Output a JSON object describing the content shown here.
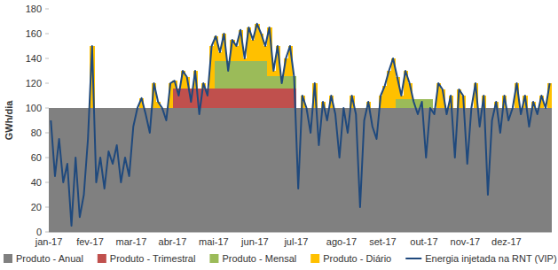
{
  "chart_data": {
    "type": "area",
    "ylabel": "GWh/dia",
    "categories": [
      "jan-17",
      null,
      null,
      null,
      null,
      null,
      null,
      null,
      null,
      null,
      "fev-17",
      null,
      null,
      null,
      null,
      null,
      null,
      null,
      null,
      null,
      "mar-17",
      null,
      null,
      null,
      null,
      null,
      null,
      null,
      null,
      null,
      "abr-17",
      null,
      null,
      null,
      null,
      null,
      null,
      null,
      null,
      null,
      "mai-17",
      null,
      null,
      null,
      null,
      null,
      null,
      null,
      null,
      null,
      "jun-17",
      null,
      null,
      null,
      null,
      null,
      null,
      null,
      null,
      null,
      "jul-17",
      null,
      null,
      null,
      null,
      null,
      null,
      null,
      null,
      null,
      null,
      "ago-17",
      null,
      null,
      null,
      null,
      null,
      null,
      null,
      null,
      null,
      "set-17",
      null,
      null,
      null,
      null,
      null,
      null,
      null,
      null,
      null,
      "out-17",
      null,
      null,
      null,
      null,
      null,
      null,
      null,
      null,
      null,
      "nov-17",
      null,
      null,
      null,
      null,
      null,
      null,
      null,
      null,
      null,
      "dez-17",
      null,
      null,
      null,
      null,
      null,
      null,
      null,
      null,
      null,
      null
    ],
    "series": [
      {
        "name": "Produto - Anual",
        "color": "#808080",
        "type": "area",
        "values": [
          100,
          100,
          100,
          100,
          100,
          100,
          100,
          100,
          100,
          100,
          100,
          100,
          100,
          100,
          100,
          100,
          100,
          100,
          100,
          100,
          100,
          100,
          100,
          100,
          100,
          100,
          100,
          100,
          100,
          100,
          100,
          100,
          100,
          100,
          100,
          100,
          100,
          100,
          100,
          100,
          100,
          100,
          100,
          100,
          100,
          100,
          100,
          100,
          100,
          100,
          100,
          100,
          100,
          100,
          100,
          100,
          100,
          100,
          100,
          100,
          100,
          100,
          100,
          100,
          100,
          100,
          100,
          100,
          100,
          100,
          100,
          100,
          100,
          100,
          100,
          100,
          100,
          100,
          100,
          100,
          100,
          100,
          100,
          100,
          100,
          100,
          100,
          100,
          100,
          100,
          100,
          100,
          100,
          100,
          100,
          100,
          100,
          100,
          100,
          100,
          100,
          100,
          100,
          100,
          100,
          100,
          100,
          100,
          100,
          100,
          100,
          100,
          100,
          100,
          100,
          100,
          100,
          100,
          100,
          100,
          100,
          100
        ]
      },
      {
        "name": "Produto - Trimestral",
        "color": "#c0504d",
        "type": "area",
        "values": [
          0,
          0,
          0,
          0,
          0,
          0,
          0,
          0,
          0,
          0,
          0,
          0,
          0,
          0,
          0,
          0,
          0,
          0,
          0,
          0,
          0,
          0,
          0,
          0,
          0,
          0,
          0,
          0,
          0,
          0,
          16,
          16,
          16,
          16,
          16,
          16,
          16,
          16,
          16,
          16,
          16,
          16,
          16,
          16,
          16,
          16,
          16,
          16,
          16,
          16,
          16,
          16,
          16,
          16,
          16,
          16,
          16,
          16,
          16,
          16,
          0,
          0,
          0,
          0,
          0,
          0,
          0,
          0,
          0,
          0,
          0,
          0,
          0,
          0,
          0,
          0,
          0,
          0,
          0,
          0,
          0,
          0,
          0,
          0,
          0,
          0,
          0,
          0,
          0,
          0,
          0,
          0,
          0,
          0,
          0,
          0,
          0,
          0,
          0,
          0,
          0,
          0,
          0,
          0,
          0,
          0,
          0,
          0,
          0,
          0,
          0,
          0,
          0,
          0,
          0,
          0,
          0,
          0,
          0,
          0,
          0,
          0
        ]
      },
      {
        "name": "Produto - Mensal",
        "color": "#9bbb59",
        "type": "area",
        "values": [
          0,
          0,
          0,
          0,
          0,
          0,
          0,
          0,
          0,
          0,
          0,
          0,
          0,
          0,
          0,
          0,
          0,
          0,
          0,
          0,
          0,
          0,
          0,
          0,
          0,
          0,
          0,
          0,
          0,
          0,
          0,
          0,
          0,
          0,
          0,
          0,
          0,
          0,
          0,
          0,
          22,
          22,
          22,
          22,
          22,
          22,
          22,
          22,
          22,
          22,
          22,
          22,
          22,
          10,
          10,
          10,
          10,
          10,
          10,
          10,
          0,
          0,
          0,
          0,
          0,
          0,
          0,
          0,
          0,
          0,
          0,
          0,
          0,
          0,
          0,
          0,
          0,
          0,
          0,
          0,
          0,
          0,
          0,
          0,
          7,
          7,
          7,
          7,
          7,
          7,
          7,
          7,
          7,
          0,
          0,
          0,
          0,
          0,
          0,
          0,
          0,
          0,
          0,
          0,
          0,
          0,
          0,
          0,
          0,
          0,
          0,
          0,
          0,
          0,
          0,
          0,
          0,
          0,
          0,
          0,
          0,
          0
        ]
      },
      {
        "name": "Produto - Diário",
        "color": "#ffc000",
        "type": "area",
        "values": [
          0,
          0,
          0,
          0,
          0,
          0,
          0,
          0,
          0,
          0,
          50,
          0,
          0,
          0,
          0,
          0,
          0,
          0,
          0,
          0,
          0,
          0,
          8,
          0,
          0,
          20,
          5,
          0,
          0,
          20,
          6,
          0,
          14,
          9,
          0,
          14,
          0,
          4,
          0,
          34,
          20,
          7,
          22,
          0,
          17,
          12,
          25,
          2,
          27,
          17,
          30,
          22,
          12,
          39,
          4,
          24,
          0,
          14,
          24,
          0,
          0,
          10,
          0,
          0,
          20,
          0,
          5,
          0,
          10,
          0,
          0,
          0,
          0,
          10,
          0,
          0,
          0,
          5,
          0,
          0,
          10,
          18,
          30,
          40,
          18,
          3,
          23,
          13,
          0,
          0,
          0,
          0,
          0,
          0,
          20,
          15,
          0,
          10,
          0,
          15,
          10,
          0,
          0,
          20,
          0,
          10,
          0,
          0,
          5,
          0,
          10,
          0,
          0,
          20,
          0,
          10,
          0,
          5,
          0,
          10,
          0,
          20
        ]
      },
      {
        "name": "Energia injetada na RNT (VIP)",
        "color": "#1f497d",
        "type": "line",
        "values": [
          90,
          45,
          75,
          40,
          55,
          5,
          60,
          12,
          30,
          75,
          150,
          40,
          60,
          35,
          65,
          55,
          70,
          40,
          60,
          45,
          85,
          100,
          108,
          95,
          80,
          120,
          105,
          100,
          90,
          120,
          122,
          110,
          130,
          125,
          105,
          130,
          95,
          120,
          110,
          150,
          158,
          145,
          160,
          130,
          155,
          150,
          163,
          140,
          165,
          155,
          168,
          160,
          150,
          165,
          130,
          150,
          120,
          140,
          150,
          125,
          35,
          110,
          100,
          80,
          120,
          70,
          105,
          90,
          110,
          95,
          60,
          100,
          80,
          110,
          95,
          20,
          90,
          105,
          85,
          75,
          110,
          118,
          130,
          140,
          125,
          110,
          130,
          120,
          105,
          95,
          105,
          60,
          100,
          95,
          120,
          115,
          95,
          110,
          60,
          115,
          110,
          55,
          100,
          120,
          85,
          110,
          30,
          90,
          105,
          80,
          110,
          90,
          100,
          120,
          95,
          110,
          85,
          105,
          95,
          110,
          100,
          120
        ]
      }
    ],
    "stacked": true,
    "ylim": [
      0,
      180
    ],
    "yticks": [
      0,
      20,
      40,
      60,
      80,
      100,
      120,
      140,
      160,
      180
    ],
    "grid": false,
    "legend": "bottom"
  }
}
